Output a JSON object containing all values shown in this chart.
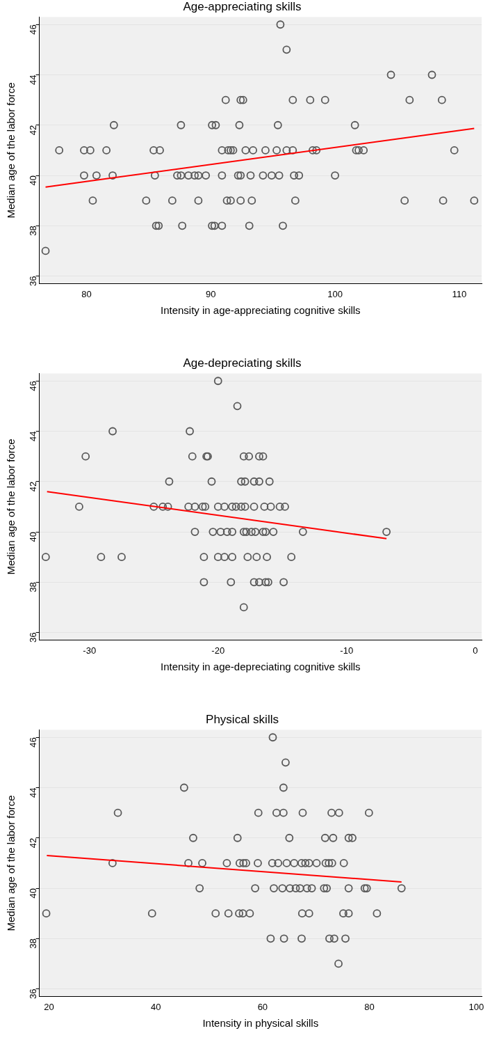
{
  "chart_data": [
    {
      "type": "scatter",
      "title": "Age-appreciating skills",
      "xlabel": "Intensity in age-appreciating cognitive skills",
      "ylabel": "Median age of the labor force",
      "xlim": [
        76.2,
        111.8
      ],
      "xticks": [
        80,
        90,
        100,
        110
      ],
      "ylim": [
        35.7,
        46.3
      ],
      "yticks": [
        36,
        38,
        40,
        42,
        44,
        46
      ],
      "grid": "y",
      "legend": false,
      "series": [
        {
          "type": "scatter",
          "marker": "circle",
          "color": "#595959",
          "x": [
            95.6,
            96.1,
            104.5,
            107.8,
            91.2,
            92.4,
            92.6,
            96.6,
            98.0,
            99.2,
            106.0,
            108.6,
            82.2,
            87.6,
            90.1,
            90.4,
            92.3,
            95.4,
            101.6,
            77.8,
            79.8,
            80.3,
            81.6,
            85.4,
            85.9,
            90.9,
            91.4,
            91.6,
            91.8,
            92.8,
            93.4,
            94.4,
            95.3,
            96.1,
            96.6,
            98.2,
            98.5,
            101.7,
            101.9,
            102.3,
            109.6,
            79.8,
            80.8,
            82.1,
            85.5,
            87.3,
            87.6,
            88.2,
            88.7,
            89.0,
            89.6,
            90.9,
            92.2,
            92.4,
            93.2,
            94.2,
            94.9,
            95.5,
            96.7,
            97.1,
            100.0,
            80.5,
            84.8,
            86.9,
            89.0,
            91.3,
            91.6,
            92.4,
            93.3,
            96.8,
            105.6,
            108.7,
            111.2,
            85.6,
            85.8,
            87.7,
            90.1,
            90.3,
            90.9,
            93.1,
            95.8,
            76.7
          ],
          "values": [
            46,
            45,
            44,
            44,
            43,
            43,
            43,
            43,
            43,
            43,
            43,
            43,
            42,
            42,
            42,
            42,
            42,
            42,
            42,
            41,
            41,
            41,
            41,
            41,
            41,
            41,
            41,
            41,
            41,
            41,
            41,
            41,
            41,
            41,
            41,
            41,
            41,
            41,
            41,
            41,
            41,
            40,
            40,
            40,
            40,
            40,
            40,
            40,
            40,
            40,
            40,
            40,
            40,
            40,
            40,
            40,
            40,
            40,
            40,
            40,
            40,
            39,
            39,
            39,
            39,
            39,
            39,
            39,
            39,
            39,
            39,
            39,
            39,
            38,
            38,
            38,
            38,
            38,
            38,
            38,
            38,
            37
          ]
        },
        {
          "type": "line",
          "marker": "none",
          "color": "#ff0000",
          "x": [
            76.7,
            111.2
          ],
          "values": [
            39.54,
            41.87
          ]
        }
      ]
    },
    {
      "type": "scatter",
      "title": "Age-depreciating skills",
      "xlabel": "Intensity in age-depreciating cognitive skills",
      "ylabel": "Median age of the labor force",
      "xlim": [
        -33.9,
        0.5
      ],
      "xticks": [
        -30,
        -20,
        -10,
        0
      ],
      "ylim": [
        35.7,
        46.3
      ],
      "yticks": [
        36,
        38,
        40,
        42,
        44,
        46
      ],
      "grid": "y",
      "legend": false,
      "series": [
        {
          "type": "scatter",
          "marker": "circle",
          "color": "#595959",
          "x": [
            -20.0,
            -18.5,
            -28.2,
            -22.2,
            -30.3,
            -22.0,
            -20.9,
            -20.8,
            -18.0,
            -17.6,
            -16.8,
            -16.5,
            -23.8,
            -20.5,
            -18.2,
            -17.9,
            -17.2,
            -16.8,
            -16.0,
            -30.8,
            -25.0,
            -24.3,
            -23.9,
            -22.3,
            -21.8,
            -21.2,
            -21.0,
            -20.0,
            -19.5,
            -18.9,
            -18.6,
            -18.2,
            -17.9,
            -17.2,
            -16.4,
            -15.9,
            -15.2,
            -14.8,
            -21.8,
            -20.4,
            -19.8,
            -19.3,
            -18.9,
            -18.0,
            -17.8,
            -17.4,
            -17.1,
            -16.5,
            -16.3,
            -15.7,
            -13.4,
            -6.9,
            -33.4,
            -29.1,
            -27.5,
            -21.1,
            -20.0,
            -19.5,
            -18.9,
            -17.7,
            -17.0,
            -16.2,
            -14.3,
            -21.1,
            -19.0,
            -17.2,
            -16.8,
            -16.3,
            -16.1,
            -14.9,
            -18.0
          ],
          "values": [
            46,
            45,
            44,
            44,
            43,
            43,
            43,
            43,
            43,
            43,
            43,
            43,
            42,
            42,
            42,
            42,
            42,
            42,
            42,
            41,
            41,
            41,
            41,
            41,
            41,
            41,
            41,
            41,
            41,
            41,
            41,
            41,
            41,
            41,
            41,
            41,
            41,
            41,
            40,
            40,
            40,
            40,
            40,
            40,
            40,
            40,
            40,
            40,
            40,
            40,
            40,
            40,
            39,
            39,
            39,
            39,
            39,
            39,
            39,
            39,
            39,
            39,
            39,
            38,
            38,
            38,
            38,
            38,
            38,
            38,
            37
          ]
        },
        {
          "type": "line",
          "marker": "none",
          "color": "#ff0000",
          "x": [
            -33.3,
            -6.9
          ],
          "values": [
            41.6,
            39.73
          ]
        }
      ]
    },
    {
      "type": "scatter",
      "title": "Physical skills",
      "xlabel": "Intensity in physical skills",
      "ylabel": "Median age of the labor force",
      "xlim": [
        18.2,
        101
      ],
      "xticks": [
        20,
        40,
        60,
        80,
        100
      ],
      "ylim": [
        35.7,
        46.3
      ],
      "yticks": [
        36,
        38,
        40,
        42,
        44,
        46
      ],
      "grid": "y",
      "legend": false,
      "series": [
        {
          "type": "scatter",
          "marker": "circle",
          "color": "#595959",
          "x": [
            61.9,
            64.3,
            45.3,
            63.9,
            32.9,
            59.2,
            62.6,
            63.9,
            67.5,
            72.9,
            74.3,
            79.9,
            47.0,
            55.3,
            65.0,
            71.7,
            73.2,
            76.1,
            76.8,
            31.9,
            46.1,
            48.7,
            53.3,
            55.7,
            56.4,
            56.9,
            59.1,
            61.8,
            62.9,
            64.5,
            65.9,
            67.3,
            68.0,
            68.7,
            70.1,
            71.8,
            72.4,
            73.0,
            75.2,
            48.2,
            58.6,
            62.1,
            63.7,
            65.1,
            66.2,
            67.0,
            68.3,
            69.2,
            71.5,
            72.0,
            76.1,
            79.1,
            79.5,
            86.0,
            19.5,
            39.3,
            51.2,
            53.6,
            55.6,
            56.3,
            57.6,
            67.4,
            68.7,
            75.1,
            76.1,
            81.4,
            61.5,
            64.0,
            67.3,
            72.5,
            73.4,
            75.5,
            74.2
          ],
          "values": [
            46,
            45,
            44,
            44,
            43,
            43,
            43,
            43,
            43,
            43,
            43,
            43,
            42,
            42,
            42,
            42,
            42,
            42,
            42,
            41,
            41,
            41,
            41,
            41,
            41,
            41,
            41,
            41,
            41,
            41,
            41,
            41,
            41,
            41,
            41,
            41,
            41,
            41,
            41,
            40,
            40,
            40,
            40,
            40,
            40,
            40,
            40,
            40,
            40,
            40,
            40,
            40,
            40,
            40,
            39,
            39,
            39,
            39,
            39,
            39,
            39,
            39,
            39,
            39,
            39,
            39,
            38,
            38,
            38,
            38,
            38,
            38,
            37
          ]
        },
        {
          "type": "line",
          "marker": "none",
          "color": "#ff0000",
          "x": [
            19.6,
            86.0
          ],
          "values": [
            41.3,
            40.25
          ]
        }
      ]
    }
  ]
}
